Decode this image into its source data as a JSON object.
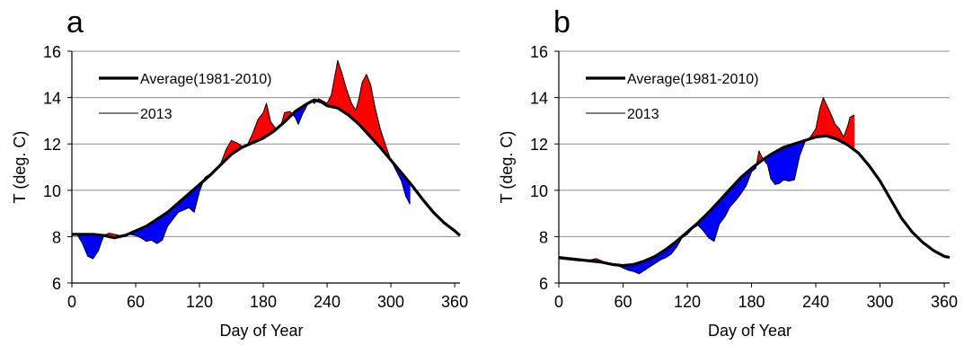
{
  "colors": {
    "above": "#ff0000",
    "below": "#0000ff",
    "average": "#000000",
    "grid": "#8c8c8c"
  },
  "chart_data": [
    {
      "panel_label": "a",
      "type": "line",
      "xlabel": "Day of Year",
      "ylabel": "T (deg. C)",
      "xlim": [
        0,
        365
      ],
      "ylim": [
        6,
        16
      ],
      "xticks": [
        0,
        60,
        120,
        180,
        240,
        300,
        360
      ],
      "yticks": [
        6,
        8,
        10,
        12,
        14,
        16
      ],
      "grid": "horizontal",
      "legend_position": "top-left",
      "fill_between": true,
      "series": [
        {
          "name": "Average(1981-2010)",
          "style": "thick",
          "points": [
            [
              0,
              8.1
            ],
            [
              10,
              8.1
            ],
            [
              20,
              8.1
            ],
            [
              30,
              8.05
            ],
            [
              40,
              7.95
            ],
            [
              50,
              8.05
            ],
            [
              60,
              8.25
            ],
            [
              70,
              8.45
            ],
            [
              80,
              8.75
            ],
            [
              90,
              9.05
            ],
            [
              100,
              9.45
            ],
            [
              110,
              9.85
            ],
            [
              120,
              10.25
            ],
            [
              130,
              10.65
            ],
            [
              140,
              11.1
            ],
            [
              150,
              11.55
            ],
            [
              160,
              11.85
            ],
            [
              170,
              12.05
            ],
            [
              180,
              12.25
            ],
            [
              190,
              12.55
            ],
            [
              200,
              12.95
            ],
            [
              210,
              13.4
            ],
            [
              220,
              13.7
            ],
            [
              228,
              13.9
            ],
            [
              235,
              13.8
            ],
            [
              240,
              13.65
            ],
            [
              250,
              13.55
            ],
            [
              260,
              13.25
            ],
            [
              270,
              12.85
            ],
            [
              280,
              12.35
            ],
            [
              290,
              11.85
            ],
            [
              300,
              11.3
            ],
            [
              310,
              10.75
            ],
            [
              320,
              10.2
            ],
            [
              330,
              9.6
            ],
            [
              340,
              9.05
            ],
            [
              350,
              8.6
            ],
            [
              360,
              8.25
            ],
            [
              365,
              8.05
            ]
          ]
        },
        {
          "name": "2013",
          "style": "thin",
          "points": [
            [
              0,
              8.05
            ],
            [
              5,
              8.1
            ],
            [
              10,
              7.7
            ],
            [
              15,
              7.15
            ],
            [
              20,
              7.05
            ],
            [
              25,
              7.4
            ],
            [
              30,
              8.05
            ],
            [
              35,
              8.15
            ],
            [
              40,
              8.1
            ],
            [
              45,
              8.05
            ],
            [
              50,
              8.1
            ],
            [
              55,
              8.1
            ],
            [
              60,
              8.05
            ],
            [
              65,
              7.95
            ],
            [
              70,
              7.8
            ],
            [
              75,
              7.85
            ],
            [
              80,
              7.7
            ],
            [
              85,
              7.85
            ],
            [
              90,
              8.45
            ],
            [
              95,
              8.75
            ],
            [
              100,
              9.05
            ],
            [
              105,
              9.15
            ],
            [
              110,
              9.25
            ],
            [
              115,
              9.05
            ],
            [
              120,
              9.95
            ],
            [
              125,
              10.55
            ],
            [
              130,
              10.7
            ],
            [
              140,
              11.15
            ],
            [
              145,
              11.75
            ],
            [
              150,
              12.15
            ],
            [
              155,
              12.05
            ],
            [
              160,
              11.9
            ],
            [
              165,
              11.95
            ],
            [
              170,
              12.45
            ],
            [
              175,
              13.05
            ],
            [
              180,
              13.35
            ],
            [
              183,
              13.75
            ],
            [
              187,
              12.95
            ],
            [
              192,
              12.65
            ],
            [
              197,
              12.85
            ],
            [
              200,
              13.35
            ],
            [
              205,
              13.4
            ],
            [
              210,
              13.15
            ],
            [
              213,
              12.85
            ],
            [
              217,
              13.3
            ],
            [
              220,
              13.55
            ],
            [
              222,
              13.75
            ],
            [
              225,
              13.85
            ],
            [
              228,
              13.75
            ],
            [
              232,
              13.95
            ],
            [
              236,
              13.85
            ],
            [
              240,
              13.75
            ],
            [
              244,
              14.1
            ],
            [
              248,
              15.1
            ],
            [
              250,
              15.6
            ],
            [
              254,
              15.05
            ],
            [
              258,
              14.4
            ],
            [
              263,
              13.75
            ],
            [
              267,
              13.45
            ],
            [
              270,
              13.95
            ],
            [
              273,
              14.65
            ],
            [
              277,
              15.0
            ],
            [
              281,
              14.55
            ],
            [
              285,
              13.6
            ],
            [
              290,
              12.65
            ],
            [
              295,
              11.95
            ],
            [
              300,
              11.3
            ],
            [
              305,
              10.85
            ],
            [
              310,
              10.4
            ],
            [
              314,
              9.75
            ],
            [
              318,
              9.4
            ]
          ]
        }
      ]
    },
    {
      "panel_label": "b",
      "type": "line",
      "xlabel": "Day of Year",
      "ylabel": "T (deg. C)",
      "xlim": [
        0,
        365
      ],
      "ylim": [
        6,
        16
      ],
      "xticks": [
        0,
        60,
        120,
        180,
        240,
        300,
        360
      ],
      "yticks": [
        6,
        8,
        10,
        12,
        14,
        16
      ],
      "grid": "horizontal",
      "legend_position": "top-left",
      "fill_between": true,
      "series": [
        {
          "name": "Average(1981-2010)",
          "style": "thick",
          "points": [
            [
              0,
              7.1
            ],
            [
              10,
              7.05
            ],
            [
              20,
              7.0
            ],
            [
              30,
              6.95
            ],
            [
              40,
              6.9
            ],
            [
              50,
              6.8
            ],
            [
              60,
              6.75
            ],
            [
              70,
              6.8
            ],
            [
              80,
              6.95
            ],
            [
              90,
              7.15
            ],
            [
              100,
              7.45
            ],
            [
              110,
              7.8
            ],
            [
              120,
              8.2
            ],
            [
              130,
              8.6
            ],
            [
              140,
              9.05
            ],
            [
              150,
              9.55
            ],
            [
              160,
              10.05
            ],
            [
              170,
              10.55
            ],
            [
              180,
              10.95
            ],
            [
              190,
              11.3
            ],
            [
              200,
              11.6
            ],
            [
              210,
              11.85
            ],
            [
              220,
              12.0
            ],
            [
              230,
              12.15
            ],
            [
              240,
              12.3
            ],
            [
              250,
              12.35
            ],
            [
              260,
              12.2
            ],
            [
              270,
              11.95
            ],
            [
              280,
              11.6
            ],
            [
              290,
              11.05
            ],
            [
              300,
              10.4
            ],
            [
              310,
              9.6
            ],
            [
              320,
              8.8
            ],
            [
              330,
              8.2
            ],
            [
              340,
              7.75
            ],
            [
              350,
              7.4
            ],
            [
              360,
              7.15
            ],
            [
              365,
              7.1
            ]
          ]
        },
        {
          "name": "2013",
          "style": "thin",
          "points": [
            [
              0,
              7.05
            ],
            [
              10,
              7.0
            ],
            [
              20,
              6.95
            ],
            [
              30,
              7.0
            ],
            [
              35,
              7.05
            ],
            [
              40,
              6.95
            ],
            [
              45,
              6.85
            ],
            [
              50,
              6.8
            ],
            [
              55,
              6.75
            ],
            [
              60,
              6.65
            ],
            [
              65,
              6.55
            ],
            [
              70,
              6.5
            ],
            [
              75,
              6.4
            ],
            [
              80,
              6.55
            ],
            [
              85,
              6.7
            ],
            [
              90,
              6.85
            ],
            [
              95,
              7.0
            ],
            [
              100,
              7.1
            ],
            [
              105,
              7.25
            ],
            [
              110,
              7.55
            ],
            [
              115,
              7.95
            ],
            [
              120,
              8.1
            ],
            [
              125,
              8.35
            ],
            [
              130,
              8.5
            ],
            [
              135,
              8.25
            ],
            [
              140,
              7.95
            ],
            [
              145,
              7.8
            ],
            [
              150,
              8.55
            ],
            [
              155,
              8.85
            ],
            [
              160,
              9.3
            ],
            [
              165,
              9.55
            ],
            [
              170,
              9.85
            ],
            [
              175,
              10.2
            ],
            [
              180,
              10.8
            ],
            [
              184,
              10.95
            ],
            [
              187,
              11.7
            ],
            [
              190,
              11.4
            ],
            [
              195,
              11.1
            ],
            [
              198,
              10.5
            ],
            [
              202,
              10.25
            ],
            [
              206,
              10.3
            ],
            [
              210,
              10.45
            ],
            [
              215,
              10.4
            ],
            [
              220,
              10.45
            ],
            [
              225,
              11.5
            ],
            [
              230,
              12.1
            ],
            [
              235,
              12.3
            ],
            [
              240,
              12.65
            ],
            [
              244,
              13.55
            ],
            [
              247,
              14.0
            ],
            [
              251,
              13.6
            ],
            [
              255,
              13.2
            ],
            [
              258,
              12.85
            ],
            [
              262,
              12.65
            ],
            [
              266,
              12.3
            ],
            [
              270,
              12.8
            ],
            [
              272,
              13.15
            ],
            [
              276,
              13.25
            ]
          ]
        }
      ]
    }
  ]
}
